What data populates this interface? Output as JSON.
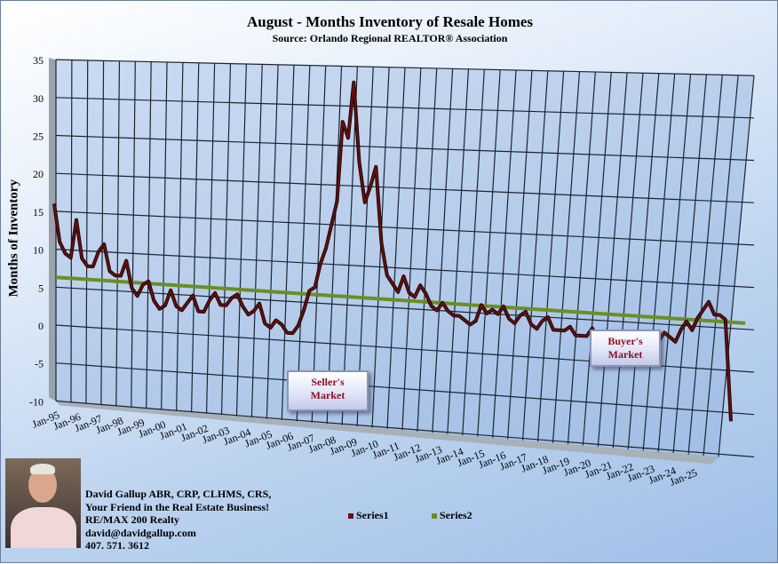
{
  "chart_data": {
    "type": "line",
    "title": "August - Months Inventory of Resale Homes",
    "subtitle": "Source: Orlando Regional REALTOR® Association",
    "ylabel": "Months of Inventory",
    "xlabel": "",
    "ylim": [
      -10,
      35
    ],
    "yticks": [
      "35",
      "30",
      "25",
      "20",
      "15",
      "10",
      "5",
      "0",
      "-5",
      "-10"
    ],
    "xtick_labels": [
      "Jan-95",
      "Jan-96",
      "Jan-97",
      "Jan-98",
      "Jan-99",
      "Jan-00",
      "Jan-01",
      "Jan-02",
      "Jan-03",
      "Jan-04",
      "Jan-05",
      "Jan-06",
      "Jan-07",
      "Jan-08",
      "Jan-09",
      "Jan-10",
      "Jan-11",
      "Jan-12",
      "Jan-13",
      "Jan-14",
      "Jan-15",
      "Jan-16",
      "Jan-17",
      "Jan-18",
      "Jan-19",
      "Jan-20",
      "Jan-21",
      "Jan-22",
      "Jan-23",
      "Jan-24",
      "Jan-25"
    ],
    "grid": true,
    "perspective": "3d",
    "legend_position": "bottom",
    "series": [
      {
        "name": "Series1",
        "color": "#5a0d0d",
        "values": [
          16,
          11,
          9.5,
          9,
          14,
          9,
          8,
          8,
          10,
          11,
          7.5,
          7,
          7,
          9,
          5.5,
          4.5,
          6,
          6.5,
          4,
          3,
          3.5,
          5.5,
          3.5,
          3,
          4,
          5,
          3,
          3,
          4.5,
          5.5,
          4,
          4,
          5,
          5.5,
          4,
          3,
          3.5,
          4.5,
          2,
          1.5,
          2.5,
          2,
          1,
          1,
          2,
          4,
          6.5,
          7,
          10,
          12,
          15,
          18,
          28,
          26,
          33,
          23,
          18,
          20,
          22.5,
          13,
          9,
          8,
          7,
          9,
          7,
          6.5,
          8,
          7,
          5.5,
          5,
          6,
          5,
          4.5,
          4.5,
          4,
          3.5,
          4,
          6,
          5,
          5.5,
          5,
          6,
          4.5,
          4,
          5,
          5.5,
          4,
          3.5,
          4.5,
          5,
          3.5,
          3.5,
          3.5,
          4,
          3,
          3,
          3,
          4,
          2.5,
          2.5,
          3,
          2.5,
          2.5,
          2,
          1.5,
          1,
          1,
          1,
          1.5,
          3,
          4,
          3.5,
          3,
          4.5,
          5.5,
          4.5,
          6,
          7,
          8,
          6.5,
          6.5,
          6,
          -6
        ]
      },
      {
        "name": "Series2",
        "color": "#6b8e23",
        "values_trend": [
          6.3,
          5.7
        ]
      }
    ]
  },
  "annotations": {
    "sellers": [
      "Seller's",
      "Market"
    ],
    "buyers": [
      "Buyer's",
      "Market"
    ]
  },
  "contact": {
    "line1": "David Gallup  ABR, CRP, CLHMS, CRS,",
    "line2": "Your Friend in the Real Estate Business!",
    "line3": "RE/MAX 200 Realty",
    "line4": "david@davidgallup.com",
    "line5": "407. 571. 3612"
  }
}
